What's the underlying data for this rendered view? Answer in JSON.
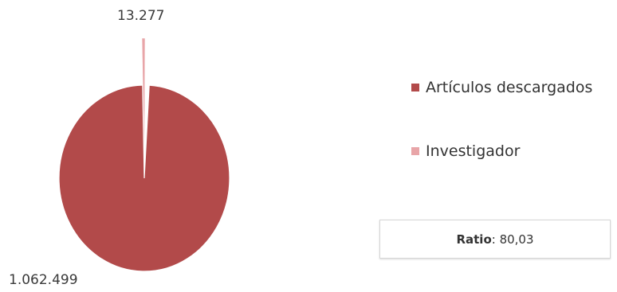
{
  "chart_data": {
    "type": "pie",
    "slices": [
      {
        "name": "Artículos descargados",
        "value": 1062499,
        "label": "1.062.499",
        "color": "#b24a4a"
      },
      {
        "name": "Investigador",
        "value": 13277,
        "label": "13.277",
        "color": "#e8a5a8"
      }
    ],
    "legend_position": "right"
  },
  "legend": {
    "items": [
      {
        "label": "Artículos descargados",
        "color": "#b24a4a"
      },
      {
        "label": "Investigador",
        "color": "#e8a5a8"
      }
    ]
  },
  "ratio": {
    "label": "Ratio",
    "separator": ": ",
    "value": "80,03"
  }
}
